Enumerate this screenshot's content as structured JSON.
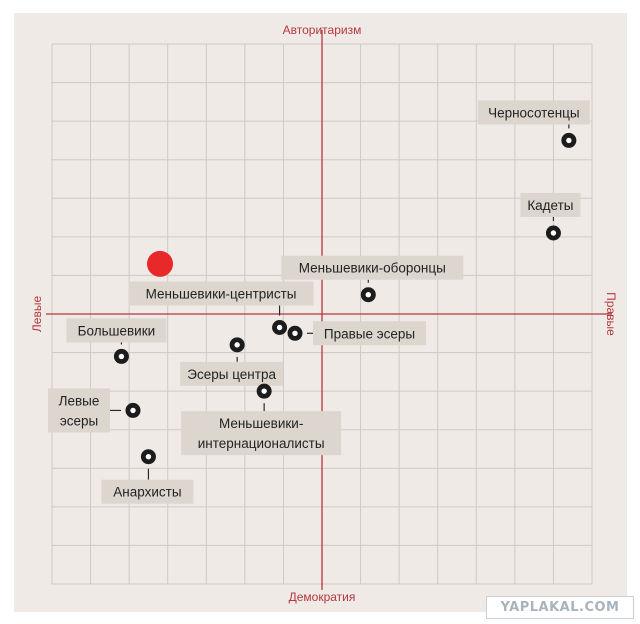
{
  "chart_data": {
    "type": "scatter",
    "grid": true,
    "xlim": [
      -7,
      7
    ],
    "ylim": [
      -7,
      7
    ],
    "axis_titles": {
      "top": "Авторитаризм",
      "bottom": "Демократия",
      "left": "Левые",
      "right": "Правые"
    },
    "highlight_point": {
      "x": -4.2,
      "y": 1.3,
      "color": "#e8292b"
    },
    "points": [
      {
        "label": [
          "Черносотенцы"
        ],
        "x": 6.4,
        "y": 4.5
      },
      {
        "label": [
          "Кадеты"
        ],
        "x": 6.0,
        "y": 2.1
      },
      {
        "label": [
          "Меньшевики-оборонцы"
        ],
        "x": 1.2,
        "y": 0.5
      },
      {
        "label": [
          "Меньшевики-центристы"
        ],
        "x": -1.1,
        "y": -0.35
      },
      {
        "label": [
          "Правые эсеры"
        ],
        "x": -0.7,
        "y": -0.5
      },
      {
        "label": [
          "Большевики"
        ],
        "x": -5.2,
        "y": -1.1
      },
      {
        "label": [
          "Эсеры центра"
        ],
        "x": -2.2,
        "y": -0.8
      },
      {
        "label": [
          "Левые",
          "эсеры"
        ],
        "x": -4.9,
        "y": -2.5
      },
      {
        "label": [
          "Меньшевики-",
          "интернационалисты"
        ],
        "x": -1.5,
        "y": -2.0
      },
      {
        "label": [
          "Анархисты"
        ],
        "x": -4.5,
        "y": -3.7
      }
    ]
  },
  "watermark": "YAPLAKAL.COM"
}
